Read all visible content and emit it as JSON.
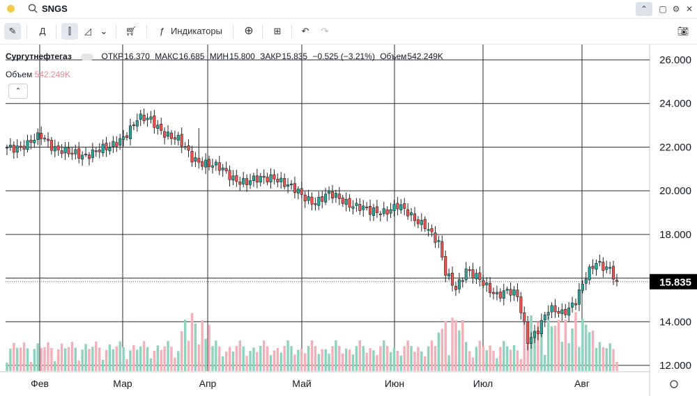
{
  "header": {
    "symbol": "SNGS"
  },
  "toolbar": {
    "interval": "Д",
    "indicators": "Индикаторы"
  },
  "legend": {
    "name": "Сургутнефтегаз",
    "open_label": "ОТКР",
    "open": "16.370",
    "high_label": "МАКС",
    "high": "16.685",
    "low_label": "МИН",
    "low": "15.800",
    "close_label": "ЗАКР",
    "close": "15.835",
    "change": "−0.525 (−3.21%)",
    "volume_label": "Объем",
    "volume": "542.249K"
  },
  "volume_legend": {
    "label": "Объем",
    "value": "542.249K"
  },
  "price_tag": "15.835",
  "colors": {
    "up": "#26a69a",
    "down": "#ef5350",
    "vol_up": "#8fd3bf",
    "vol_down": "#f2b1b9",
    "tag": "#000000"
  },
  "chart_data": {
    "type": "candlestick",
    "y_ticks": [
      "26.000",
      "24.000",
      "22.000",
      "20.000",
      "18.000",
      "16.000",
      "14.000",
      "12.000"
    ],
    "x_ticks": [
      "Фев",
      "Мар",
      "Апр",
      "Май",
      "Июн",
      "Июл",
      "Авг"
    ],
    "ylim": [
      12,
      26
    ],
    "last_price": 15.835,
    "anchors": [
      [
        0,
        22.0
      ],
      [
        6,
        22.1
      ],
      [
        10,
        22.5
      ],
      [
        14,
        22.0
      ],
      [
        18,
        21.7
      ],
      [
        22,
        21.6
      ],
      [
        26,
        21.9
      ],
      [
        30,
        21.9
      ],
      [
        34,
        22.5
      ],
      [
        38,
        23.3
      ],
      [
        42,
        23.2
      ],
      [
        46,
        22.7
      ],
      [
        50,
        22.3
      ],
      [
        54,
        21.5
      ],
      [
        58,
        21.3
      ],
      [
        62,
        21.0
      ],
      [
        66,
        20.6
      ],
      [
        70,
        20.4
      ],
      [
        74,
        20.5
      ],
      [
        78,
        20.7
      ],
      [
        82,
        20.2
      ],
      [
        86,
        19.8
      ],
      [
        90,
        19.5
      ],
      [
        94,
        19.8
      ],
      [
        98,
        19.6
      ],
      [
        102,
        19.3
      ],
      [
        106,
        19.0
      ],
      [
        110,
        19.1
      ],
      [
        114,
        19.3
      ],
      [
        118,
        18.8
      ],
      [
        122,
        18.5
      ],
      [
        126,
        17.5
      ],
      [
        128,
        16.2
      ],
      [
        131,
        15.6
      ],
      [
        134,
        16.4
      ],
      [
        136,
        16.1
      ],
      [
        140,
        15.6
      ],
      [
        143,
        15.3
      ],
      [
        146,
        15.4
      ],
      [
        149,
        15.1
      ],
      [
        152,
        13.2
      ],
      [
        155,
        13.7
      ],
      [
        158,
        14.5
      ],
      [
        162,
        14.4
      ],
      [
        166,
        15.0
      ],
      [
        169,
        16.0
      ],
      [
        172,
        16.7
      ],
      [
        176,
        16.5
      ],
      [
        178,
        15.835
      ]
    ]
  }
}
